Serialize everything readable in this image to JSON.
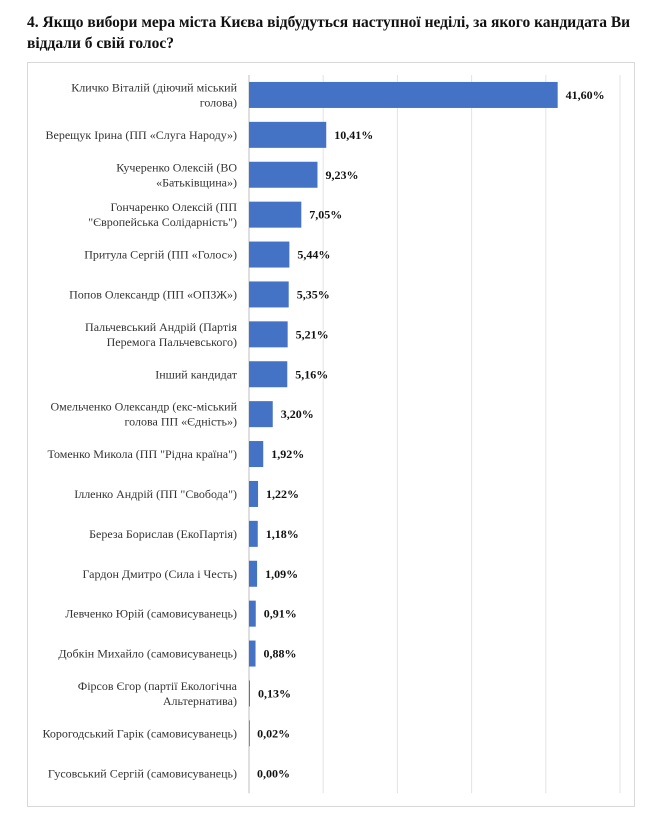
{
  "chart_data": {
    "type": "bar",
    "orientation": "horizontal",
    "title": "4. Якщо вибори мера міста Києва відбудуться наступної неділі, за якого кандидата Ви віддали б свій голос?",
    "categories": [
      [
        "Кличко Віталій (діючий міський",
        "голова)"
      ],
      [
        "Верещук Ірина (ПП «Слуга Народу»)"
      ],
      [
        "Кучеренко Олексій (ВО",
        "«Батьківщина»)"
      ],
      [
        "Гончаренко Олексій (ПП",
        "\"Європейська Солідарність\")"
      ],
      [
        "Притула Сергій (ПП «Голос»)"
      ],
      [
        "Попов Олександр (ПП «ОПЗЖ»)"
      ],
      [
        "Пальчевський Андрій (Партія",
        "Перемога Пальчевського)"
      ],
      [
        "Інший кандидат"
      ],
      [
        "Омельченко Олександр (екс-міський",
        "голова ПП «Єдність»)"
      ],
      [
        "Томенко Микола (ПП \"Рідна країна\")"
      ],
      [
        "Ілленко Андрій (ПП \"Свобода\")"
      ],
      [
        "Береза Борислав (ЕкоПартія)"
      ],
      [
        "Гардон Дмитро (Сила і Честь)"
      ],
      [
        "Левченко Юрій (самовисуванець)"
      ],
      [
        "Добкін Михайло (самовисуванець)"
      ],
      [
        "Фірсов Єгор (партії Екологічна",
        "Альтернатива)"
      ],
      [
        "Корогодський Гарік (самовисуванець)"
      ],
      [
        "Гусовський Сергій (самовисуванець)"
      ]
    ],
    "values": [
      41.6,
      10.41,
      9.23,
      7.05,
      5.44,
      5.35,
      5.21,
      5.16,
      3.2,
      1.92,
      1.22,
      1.18,
      1.09,
      0.91,
      0.88,
      0.13,
      0.02,
      0.0
    ],
    "labels": [
      "41,60%",
      "10,41%",
      "9,23%",
      "7,05%",
      "5,44%",
      "5,35%",
      "5,21%",
      "5,16%",
      "3,20%",
      "1,92%",
      "1,22%",
      "1,18%",
      "1,09%",
      "0,91%",
      "0,88%",
      "0,13%",
      "0,02%",
      "0,00%"
    ],
    "xlim": [
      0,
      50
    ],
    "grid": true,
    "bar_color": "#4472c4"
  }
}
